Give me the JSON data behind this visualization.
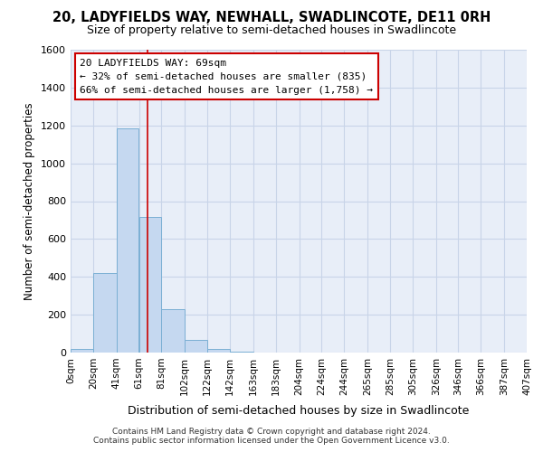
{
  "title": "20, LADYFIELDS WAY, NEWHALL, SWADLINCOTE, DE11 0RH",
  "subtitle": "Size of property relative to semi-detached houses in Swadlincote",
  "xlabel": "Distribution of semi-detached houses by size in Swadlincote",
  "ylabel": "Number of semi-detached properties",
  "footer_line1": "Contains HM Land Registry data © Crown copyright and database right 2024.",
  "footer_line2": "Contains public sector information licensed under the Open Government Licence v3.0.",
  "annotation_line1": "20 LADYFIELDS WAY: 69sqm",
  "annotation_line2": "← 32% of semi-detached houses are smaller (835)",
  "annotation_line3": "66% of semi-detached houses are larger (1,758) →",
  "property_size": 69,
  "bin_edges": [
    0,
    20,
    41,
    61,
    81,
    102,
    122,
    142,
    163,
    183,
    204,
    224,
    244,
    265,
    285,
    305,
    326,
    346,
    366,
    387,
    407
  ],
  "bin_labels": [
    "0sqm",
    "20sqm",
    "41sqm",
    "61sqm",
    "81sqm",
    "102sqm",
    "122sqm",
    "142sqm",
    "163sqm",
    "183sqm",
    "204sqm",
    "224sqm",
    "244sqm",
    "265sqm",
    "285sqm",
    "305sqm",
    "326sqm",
    "346sqm",
    "366sqm",
    "387sqm",
    "407sqm"
  ],
  "bar_heights": [
    20,
    420,
    1185,
    715,
    230,
    65,
    20,
    5,
    0,
    0,
    0,
    0,
    0,
    0,
    0,
    0,
    0,
    0,
    0,
    0
  ],
  "bar_color": "#c5d8f0",
  "bar_edge_color": "#7bafd4",
  "red_line_color": "#cc0000",
  "annotation_box_color": "#cc0000",
  "grid_color": "#c8d4e8",
  "plot_bg_color": "#e8eef8",
  "fig_bg_color": "#ffffff",
  "ylim": [
    0,
    1600
  ],
  "yticks": [
    0,
    200,
    400,
    600,
    800,
    1000,
    1200,
    1400,
    1600
  ]
}
